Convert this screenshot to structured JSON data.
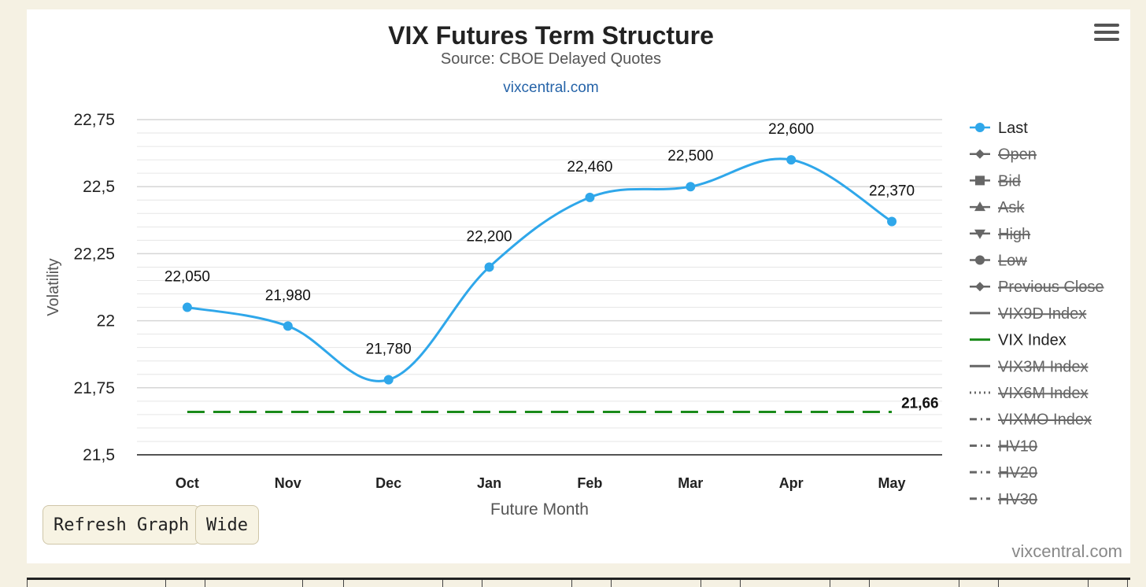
{
  "chart_data": {
    "type": "line",
    "title": "VIX Futures Term Structure",
    "subtitle": "Source: CBOE Delayed Quotes",
    "source_link": "vixcentral.com",
    "xlabel": "Future Month",
    "ylabel": "Volatility",
    "categories": [
      "Oct",
      "Nov",
      "Dec",
      "Jan",
      "Feb",
      "Mar",
      "Apr",
      "May"
    ],
    "ylim": [
      21.5,
      22.75
    ],
    "yticks": [
      21.5,
      21.75,
      22,
      22.25,
      22.5,
      22.75
    ],
    "ytick_labels": [
      "21,5",
      "21,75",
      "22",
      "22,25",
      "22,5",
      "22,75"
    ],
    "grid": true,
    "legend_position": "right",
    "series": [
      {
        "name": "Last",
        "color": "#2fa7ea",
        "values": [
          22.05,
          21.98,
          21.78,
          22.2,
          22.46,
          22.5,
          22.6,
          22.37
        ],
        "data_labels": [
          "22,050",
          "21,980",
          "21,780",
          "22,200",
          "22,460",
          "22,500",
          "22,600",
          "22,370"
        ]
      },
      {
        "name": "VIX Index",
        "color": "#1a8a1a",
        "style": "dashed",
        "value": 21.66,
        "end_label": "21,66"
      }
    ],
    "legend": [
      {
        "name": "Last",
        "marker": "circle",
        "active": true
      },
      {
        "name": "Open",
        "marker": "diamond",
        "active": false
      },
      {
        "name": "Bid",
        "marker": "square",
        "active": false
      },
      {
        "name": "Ask",
        "marker": "triangle",
        "active": false
      },
      {
        "name": "High",
        "marker": "triangle-down",
        "active": false
      },
      {
        "name": "Low",
        "marker": "circle",
        "active": false
      },
      {
        "name": "Previous Close",
        "marker": "diamond",
        "active": false
      },
      {
        "name": "VIX9D Index",
        "marker": "line",
        "active": false
      },
      {
        "name": "VIX Index",
        "marker": "line",
        "active": true
      },
      {
        "name": "VIX3M Index",
        "marker": "line",
        "active": false
      },
      {
        "name": "VIX6M Index",
        "marker": "dotted",
        "active": false
      },
      {
        "name": "VIXMO Index",
        "marker": "dashdot",
        "active": false
      },
      {
        "name": "HV10",
        "marker": "dashdot",
        "active": false
      },
      {
        "name": "HV20",
        "marker": "dashdot",
        "active": false
      },
      {
        "name": "HV30",
        "marker": "dashdot",
        "active": false
      }
    ]
  },
  "buttons": {
    "refresh_label": "Refresh Graph",
    "wide_label": "Wide"
  },
  "credit": "vixcentral.com",
  "icons": {
    "menu": "hamburger-menu-icon"
  }
}
